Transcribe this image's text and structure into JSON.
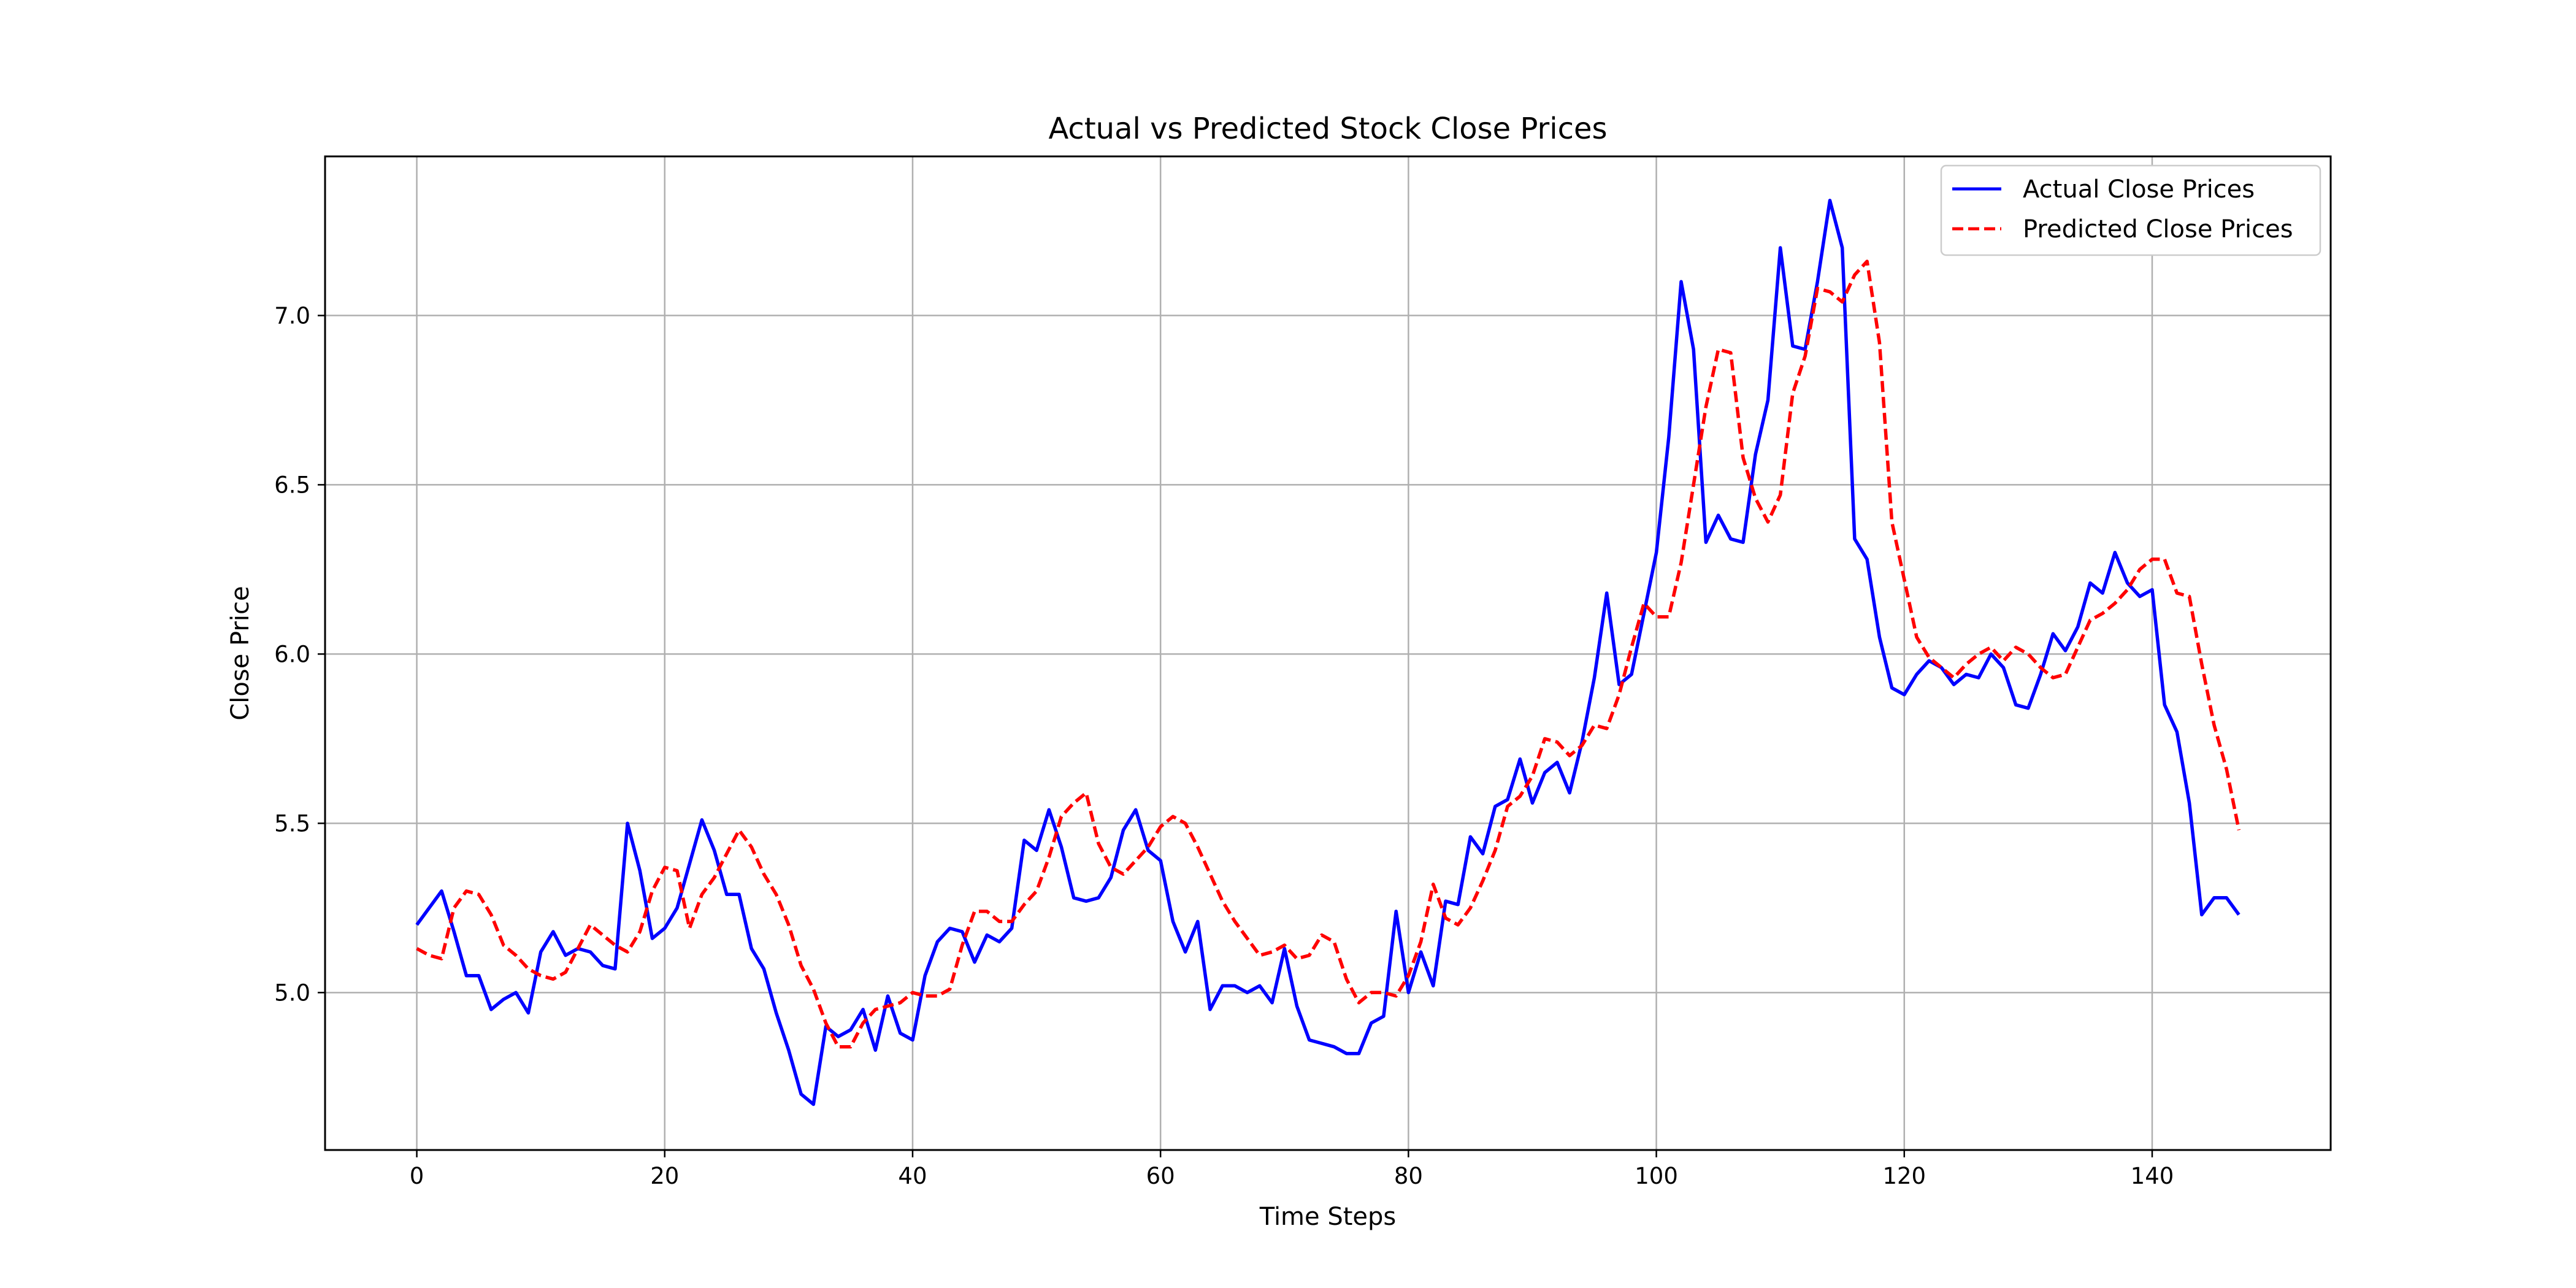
{
  "chart_data": {
    "type": "line",
    "title": "Actual vs Predicted Stock Close Prices",
    "xlabel": "Time Steps",
    "ylabel": "Close Price",
    "xlim": [
      -7.4,
      154.4
    ],
    "ylim": [
      4.535,
      7.47
    ],
    "xticks": [
      0,
      20,
      40,
      60,
      80,
      100,
      120,
      140
    ],
    "yticks": [
      5.0,
      5.5,
      6.0,
      6.5,
      7.0
    ],
    "xtick_labels": [
      "0",
      "20",
      "40",
      "60",
      "80",
      "100",
      "120",
      "140"
    ],
    "ytick_labels": [
      "5.0",
      "5.5",
      "6.0",
      "6.5",
      "7.0"
    ],
    "grid": true,
    "legend_position": "top-right",
    "series": [
      {
        "name": "Actual Close Prices",
        "color": "#0000ff",
        "style": "solid",
        "values": [
          5.2,
          5.25,
          5.3,
          5.18,
          5.05,
          5.05,
          4.95,
          4.98,
          5.0,
          4.94,
          5.12,
          5.18,
          5.11,
          5.13,
          5.12,
          5.08,
          5.07,
          5.5,
          5.36,
          5.16,
          5.19,
          5.25,
          5.38,
          5.51,
          5.42,
          5.29,
          5.29,
          5.13,
          5.07,
          4.94,
          4.83,
          4.7,
          4.67,
          4.9,
          4.87,
          4.89,
          4.95,
          4.83,
          4.99,
          4.88,
          4.86,
          5.05,
          5.15,
          5.19,
          5.18,
          5.09,
          5.17,
          5.15,
          5.19,
          5.45,
          5.42,
          5.54,
          5.43,
          5.28,
          5.27,
          5.28,
          5.34,
          5.48,
          5.54,
          5.42,
          5.39,
          5.21,
          5.12,
          5.21,
          4.95,
          5.02,
          5.02,
          5.0,
          5.02,
          4.97,
          5.13,
          4.96,
          4.86,
          4.85,
          4.84,
          4.82,
          4.82,
          4.91,
          4.93,
          5.24,
          5.0,
          5.12,
          5.02,
          5.27,
          5.26,
          5.46,
          5.41,
          5.55,
          5.57,
          5.69,
          5.56,
          5.65,
          5.68,
          5.59,
          5.74,
          5.93,
          6.18,
          5.91,
          5.94,
          6.12,
          6.3,
          6.64,
          7.1,
          6.9,
          6.33,
          6.41,
          6.34,
          6.33,
          6.59,
          6.75,
          7.2,
          6.91,
          6.9,
          7.1,
          7.34,
          7.2,
          6.34,
          6.28,
          6.05,
          5.9,
          5.88,
          5.94,
          5.98,
          5.96,
          5.91,
          5.94,
          5.93,
          6.0,
          5.96,
          5.85,
          5.84,
          5.94,
          6.06,
          6.01,
          6.08,
          6.21,
          6.18,
          6.3,
          6.21,
          6.17,
          6.19,
          5.85,
          5.77,
          5.56,
          5.23,
          5.28,
          5.28,
          5.23
        ]
      },
      {
        "name": "Predicted Close Prices",
        "color": "#ff0000",
        "style": "dashed",
        "values": [
          5.13,
          5.11,
          5.1,
          5.25,
          5.3,
          5.29,
          5.23,
          5.14,
          5.11,
          5.07,
          5.05,
          5.04,
          5.06,
          5.13,
          5.2,
          5.17,
          5.14,
          5.12,
          5.18,
          5.3,
          5.37,
          5.36,
          5.19,
          5.29,
          5.34,
          5.41,
          5.48,
          5.43,
          5.35,
          5.29,
          5.2,
          5.08,
          5.01,
          4.91,
          4.84,
          4.84,
          4.91,
          4.95,
          4.96,
          4.97,
          5.0,
          4.99,
          4.99,
          5.01,
          5.14,
          5.24,
          5.24,
          5.21,
          5.21,
          5.26,
          5.3,
          5.4,
          5.52,
          5.56,
          5.59,
          5.44,
          5.37,
          5.35,
          5.39,
          5.43,
          5.49,
          5.52,
          5.5,
          5.43,
          5.35,
          5.27,
          5.21,
          5.16,
          5.11,
          5.12,
          5.14,
          5.1,
          5.11,
          5.17,
          5.15,
          5.04,
          4.97,
          5.0,
          5.0,
          4.99,
          5.05,
          5.15,
          5.32,
          5.22,
          5.2,
          5.25,
          5.33,
          5.42,
          5.55,
          5.58,
          5.64,
          5.75,
          5.74,
          5.7,
          5.73,
          5.79,
          5.78,
          5.88,
          6.02,
          6.15,
          6.11,
          6.11,
          6.27,
          6.5,
          6.73,
          6.9,
          6.89,
          6.58,
          6.46,
          6.39,
          6.47,
          6.77,
          6.88,
          7.08,
          7.07,
          7.04,
          7.12,
          7.16,
          6.92,
          6.39,
          6.22,
          6.05,
          5.99,
          5.96,
          5.93,
          5.97,
          6.0,
          6.02,
          5.98,
          6.02,
          6.0,
          5.96,
          5.93,
          5.94,
          6.02,
          6.1,
          6.12,
          6.15,
          6.19,
          6.25,
          6.28,
          6.28,
          6.18,
          6.17,
          5.97,
          5.79,
          5.66,
          5.48
        ]
      }
    ]
  }
}
